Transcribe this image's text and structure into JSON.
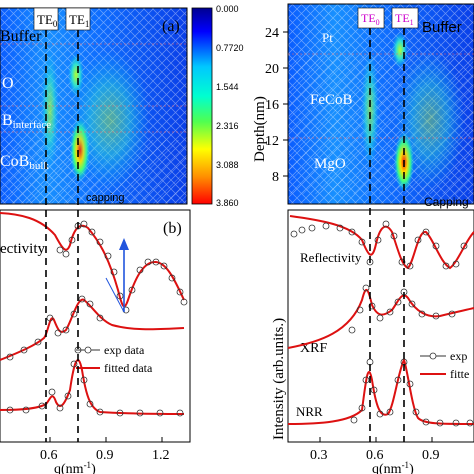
{
  "left_panel": {
    "panel_a_label": "(a)",
    "panel_b_label": "(b)",
    "te0": "TE",
    "te0_sub": "0",
    "te1": "TE",
    "te1_sub": "1",
    "layers": {
      "buffer": "Buffer",
      "mgo": "O",
      "interface_main": "B",
      "interface_sub": "interface",
      "bulk_main": "CoB",
      "bulk_sub": "bulk",
      "capping": "capping"
    },
    "colorbar_ticks": [
      "0.000",
      "0.7720",
      "1.544",
      "2.316",
      "3.088",
      "3.860"
    ],
    "reflectivity_label": "ectivity",
    "legend": {
      "exp": "exp data",
      "fit": "fitted data"
    },
    "x_axis": {
      "label_main": "q(nm",
      "label_sup": "-1",
      "label_end": ")",
      "ticks": [
        "0.6",
        "0.9",
        "1.2"
      ]
    }
  },
  "right_panel": {
    "te0": "TE",
    "te0_sub": "0",
    "te1": "TE",
    "te1_sub": "1",
    "buffer_label": "Buffer",
    "layers": {
      "pt": "Pt",
      "fecob": "FeCoB",
      "mgo": "MgO"
    },
    "capping": "Capping",
    "depth_axis": {
      "label": "Depth(nm)",
      "ticks": [
        "24",
        "20",
        "16",
        "12",
        "8"
      ]
    },
    "intensity_axis": {
      "label": "Intensity (arb.units.)"
    },
    "curve_labels": {
      "reflectivity": "Reflectivity",
      "xrf": "XRF",
      "nrr": "NRR"
    },
    "legend": {
      "exp": "exp",
      "fit": "fitte"
    },
    "x_axis": {
      "label_main": "q(nm",
      "label_sup": "-1",
      "label_end": ")",
      "ticks": [
        "0.3",
        "0.6",
        "0.9"
      ]
    }
  },
  "colors": {
    "fit": "#dd1111",
    "exp": "#333333",
    "arrow": "#2255dd",
    "dash": "#000000",
    "te_label": "#cc00cc"
  }
}
